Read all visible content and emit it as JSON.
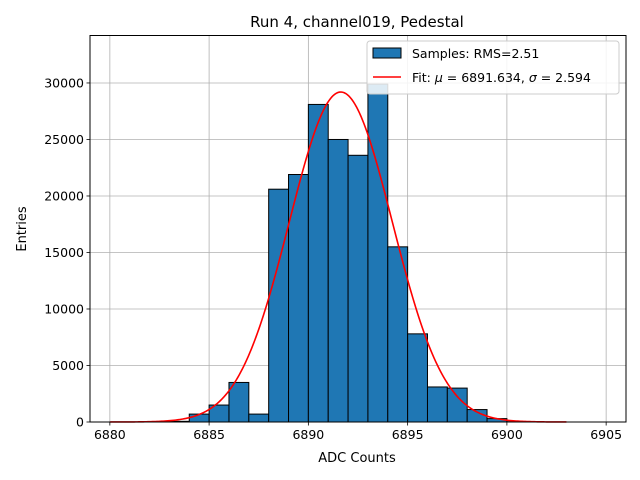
{
  "chart_data": {
    "type": "bar",
    "title": "Run 4, channel019, Pedestal",
    "xlabel": "ADC Counts",
    "ylabel": "Entries",
    "xlim": [
      6879,
      6906
    ],
    "ylim": [
      0,
      34200
    ],
    "grid": true,
    "legend_position": "top-right",
    "xticks": [
      6880,
      6885,
      6890,
      6895,
      6900,
      6905
    ],
    "yticks": [
      0,
      5000,
      10000,
      15000,
      20000,
      25000,
      30000
    ],
    "histogram": {
      "name": "Samples: RMS=2.51",
      "color": "#1f77b4",
      "bin_width": 1,
      "bin_starts": [
        6883,
        6884,
        6885,
        6886,
        6887,
        6888,
        6889,
        6890,
        6891,
        6892,
        6893,
        6894,
        6895,
        6896,
        6897,
        6898,
        6899,
        6900
      ],
      "counts": [
        60,
        700,
        1500,
        3500,
        700,
        20600,
        21900,
        28100,
        25000,
        23600,
        29900,
        15500,
        7800,
        3100,
        3000,
        1100,
        300,
        30
      ]
    },
    "fit": {
      "name_prefix": "Fit: ",
      "name_mu": "μ",
      "name_mid": " = 6891.634, ",
      "name_sigma": "σ",
      "name_suffix": " = 2.594",
      "color": "#ff0000",
      "mu": 6891.634,
      "sigma": 2.594,
      "amplitude": 29200,
      "x_range": [
        6880,
        6903
      ]
    }
  }
}
